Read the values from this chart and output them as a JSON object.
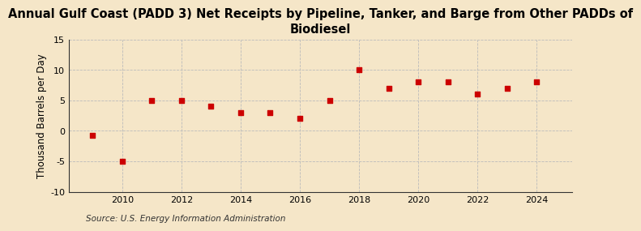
{
  "title": "Annual Gulf Coast (PADD 3) Net Receipts by Pipeline, Tanker, and Barge from Other PADDs of\nBiodiesel",
  "ylabel": "Thousand Barrels per Day",
  "source": "Source: U.S. Energy Information Administration",
  "years": [
    2009,
    2010,
    2011,
    2012,
    2013,
    2014,
    2015,
    2016,
    2017,
    2018,
    2019,
    2020,
    2021,
    2022,
    2023,
    2024
  ],
  "values": [
    -0.8,
    -5.0,
    5.0,
    5.0,
    4.0,
    3.0,
    3.0,
    2.0,
    5.0,
    10.0,
    7.0,
    8.0,
    8.0,
    6.0,
    7.0,
    8.0
  ],
  "marker_color": "#cc0000",
  "background_color": "#f5e6c8",
  "grid_color": "#bbbbbb",
  "ylim": [
    -10,
    15
  ],
  "yticks": [
    -10,
    -5,
    0,
    5,
    10,
    15
  ],
  "xlim": [
    2008.2,
    2025.2
  ],
  "xticks": [
    2010,
    2012,
    2014,
    2016,
    2018,
    2020,
    2022,
    2024
  ],
  "title_fontsize": 10.5,
  "ylabel_fontsize": 8.5,
  "tick_fontsize": 8,
  "source_fontsize": 7.5
}
